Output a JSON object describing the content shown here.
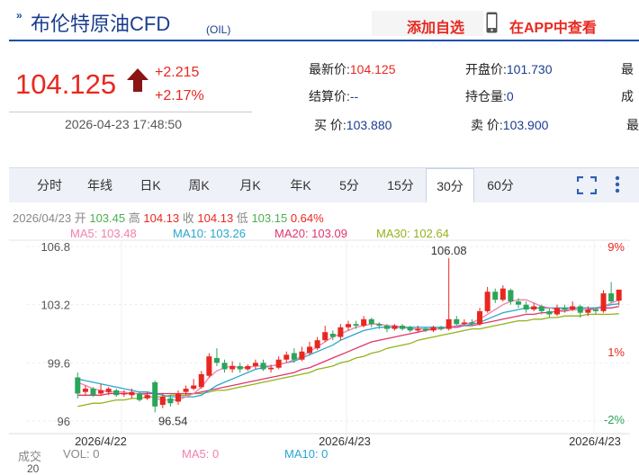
{
  "header": {
    "title": "布伦特原油CFD",
    "title_sub": "(OIL)",
    "watch_label": "添加自选",
    "app_label": "在APP中查看"
  },
  "quote": {
    "price": "104.125",
    "change": "+2.215",
    "change_pct": "+2.17%",
    "datetime": "2026-04-23 17:48:50",
    "latest_label": "最新价:",
    "latest_value": "104.125",
    "open_label": "开盘价:",
    "open_value": "101.730",
    "high_label_partial": "最",
    "settle_label": "结算价:",
    "settle_value": "--",
    "oi_label": "持仓量:",
    "oi_value": "0",
    "vol_label_partial": "成",
    "bid_label": "买  价:",
    "bid_value": "103.880",
    "ask_label": "卖  价:",
    "ask_value": "103.900",
    "extra_label_partial": "最"
  },
  "tabs": [
    {
      "label": "分时"
    },
    {
      "label": "年线"
    },
    {
      "label": "日K"
    },
    {
      "label": "周K"
    },
    {
      "label": "月K"
    },
    {
      "label": "年K"
    },
    {
      "label": "5分"
    },
    {
      "label": "15分"
    },
    {
      "label": "30分",
      "active": true
    },
    {
      "label": "60分"
    }
  ],
  "ohlc": {
    "date": "2026/04/23",
    "open_label": "开",
    "open": "103.45",
    "high_label": "高",
    "high": "104.13",
    "close_label": "收",
    "close": "104.13",
    "low_label": "低",
    "low": "103.15",
    "pct": "0.64%"
  },
  "ma": {
    "ma5": "MA5: 103.48",
    "ma10": "MA10: 103.26",
    "ma20": "MA20: 103.09",
    "ma30": "MA30: 102.64"
  },
  "colors": {
    "up": "#e8281f",
    "down": "#2aa55a",
    "ma5": "#f27fae",
    "ma10": "#29a7cf",
    "ma20": "#e0366b",
    "ma30": "#93b21b",
    "brand": "#1a3d8f"
  },
  "chart_data": {
    "type": "candlestick",
    "y_ticks": [
      "106.8",
      "103.2",
      "99.6",
      "96"
    ],
    "y_pct_ticks": [
      "9%",
      "1%",
      "-2%"
    ],
    "x_ticks": [
      "2026/4/22",
      "2026/4/23",
      "2026/4/23"
    ],
    "annotations": {
      "max": "106.08",
      "min": "96.54"
    },
    "ylim": [
      96,
      106.8
    ],
    "candles": [
      {
        "o": 98.7,
        "c": 97.7,
        "h": 99.0,
        "l": 97.4
      },
      {
        "o": 97.8,
        "c": 98.0,
        "h": 98.2,
        "l": 97.6
      },
      {
        "o": 98.0,
        "c": 97.6,
        "h": 98.1,
        "l": 97.5
      },
      {
        "o": 97.7,
        "c": 97.9,
        "h": 98.3,
        "l": 97.6
      },
      {
        "o": 97.8,
        "c": 98.0,
        "h": 98.1,
        "l": 97.6
      },
      {
        "o": 97.9,
        "c": 97.6,
        "h": 98.0,
        "l": 97.5
      },
      {
        "o": 97.7,
        "c": 97.7,
        "h": 97.9,
        "l": 97.5
      },
      {
        "o": 97.6,
        "c": 97.8,
        "h": 98.0,
        "l": 97.4
      },
      {
        "o": 97.7,
        "c": 97.3,
        "h": 97.8,
        "l": 97.2
      },
      {
        "o": 97.4,
        "c": 97.6,
        "h": 97.8,
        "l": 97.3
      },
      {
        "o": 98.4,
        "c": 96.9,
        "h": 98.5,
        "l": 96.54
      },
      {
        "o": 97.0,
        "c": 97.5,
        "h": 97.7,
        "l": 96.8
      },
      {
        "o": 97.4,
        "c": 97.1,
        "h": 97.6,
        "l": 96.9
      },
      {
        "o": 97.2,
        "c": 97.7,
        "h": 97.9,
        "l": 97.0
      },
      {
        "o": 97.8,
        "c": 98.0,
        "h": 98.2,
        "l": 97.6
      },
      {
        "o": 98.0,
        "c": 98.2,
        "h": 98.6,
        "l": 97.9
      },
      {
        "o": 98.1,
        "c": 98.9,
        "h": 99.1,
        "l": 98.0
      },
      {
        "o": 98.8,
        "c": 100.0,
        "h": 100.2,
        "l": 98.7
      },
      {
        "o": 99.9,
        "c": 99.6,
        "h": 100.5,
        "l": 99.4
      },
      {
        "o": 99.6,
        "c": 99.2,
        "h": 99.8,
        "l": 99.0
      },
      {
        "o": 99.2,
        "c": 99.4,
        "h": 99.7,
        "l": 99.0
      },
      {
        "o": 99.4,
        "c": 99.2,
        "h": 99.6,
        "l": 99.0
      },
      {
        "o": 99.2,
        "c": 99.4,
        "h": 99.5,
        "l": 99.1
      },
      {
        "o": 99.4,
        "c": 99.6,
        "h": 99.8,
        "l": 99.2
      },
      {
        "o": 99.6,
        "c": 99.2,
        "h": 99.8,
        "l": 99.1
      },
      {
        "o": 99.2,
        "c": 99.3,
        "h": 99.5,
        "l": 99.0
      },
      {
        "o": 99.3,
        "c": 99.8,
        "h": 100.0,
        "l": 99.2
      },
      {
        "o": 99.8,
        "c": 100.1,
        "h": 100.3,
        "l": 99.6
      },
      {
        "o": 100.2,
        "c": 99.8,
        "h": 100.5,
        "l": 99.6
      },
      {
        "o": 99.8,
        "c": 100.3,
        "h": 100.6,
        "l": 99.7
      },
      {
        "o": 100.2,
        "c": 100.6,
        "h": 100.9,
        "l": 100.1
      },
      {
        "o": 100.5,
        "c": 101.0,
        "h": 101.2,
        "l": 100.4
      },
      {
        "o": 101.0,
        "c": 101.5,
        "h": 101.9,
        "l": 100.9
      },
      {
        "o": 101.4,
        "c": 101.2,
        "h": 101.6,
        "l": 101.0
      },
      {
        "o": 101.2,
        "c": 101.8,
        "h": 102.0,
        "l": 101.0
      },
      {
        "o": 101.8,
        "c": 102.0,
        "h": 102.2,
        "l": 101.6
      },
      {
        "o": 102.0,
        "c": 101.9,
        "h": 102.2,
        "l": 101.7
      },
      {
        "o": 101.9,
        "c": 102.3,
        "h": 102.5,
        "l": 101.8
      },
      {
        "o": 102.3,
        "c": 102.0,
        "h": 102.4,
        "l": 101.8
      },
      {
        "o": 102.0,
        "c": 101.9,
        "h": 102.1,
        "l": 101.7
      },
      {
        "o": 101.9,
        "c": 101.7,
        "h": 102.0,
        "l": 101.5
      },
      {
        "o": 101.7,
        "c": 101.9,
        "h": 102.0,
        "l": 101.6
      },
      {
        "o": 101.9,
        "c": 101.7,
        "h": 102.0,
        "l": 101.6
      },
      {
        "o": 101.8,
        "c": 101.6,
        "h": 101.9,
        "l": 101.5
      },
      {
        "o": 101.6,
        "c": 101.7,
        "h": 101.9,
        "l": 101.5
      },
      {
        "o": 101.7,
        "c": 101.6,
        "h": 101.8,
        "l": 101.5
      },
      {
        "o": 101.6,
        "c": 101.8,
        "h": 101.9,
        "l": 101.5
      },
      {
        "o": 101.8,
        "c": 101.7,
        "h": 101.9,
        "l": 101.6
      },
      {
        "o": 101.7,
        "c": 102.3,
        "h": 106.08,
        "l": 101.6
      },
      {
        "o": 102.3,
        "c": 102.0,
        "h": 102.5,
        "l": 101.9
      },
      {
        "o": 102.0,
        "c": 102.1,
        "h": 102.3,
        "l": 101.9
      },
      {
        "o": 102.1,
        "c": 102.0,
        "h": 102.3,
        "l": 101.9
      },
      {
        "o": 102.0,
        "c": 102.8,
        "h": 103.0,
        "l": 101.9
      },
      {
        "o": 102.8,
        "c": 104.0,
        "h": 104.3,
        "l": 102.7
      },
      {
        "o": 104.0,
        "c": 103.5,
        "h": 104.2,
        "l": 103.3
      },
      {
        "o": 103.5,
        "c": 104.2,
        "h": 104.4,
        "l": 103.4
      },
      {
        "o": 104.1,
        "c": 103.4,
        "h": 104.2,
        "l": 103.2
      },
      {
        "o": 103.4,
        "c": 103.2,
        "h": 103.6,
        "l": 103.0
      },
      {
        "o": 103.2,
        "c": 102.9,
        "h": 103.4,
        "l": 102.7
      },
      {
        "o": 102.9,
        "c": 103.1,
        "h": 103.3,
        "l": 102.8
      },
      {
        "o": 103.1,
        "c": 102.8,
        "h": 103.2,
        "l": 102.6
      },
      {
        "o": 102.8,
        "c": 102.6,
        "h": 103.0,
        "l": 102.4
      },
      {
        "o": 102.6,
        "c": 103.0,
        "h": 103.2,
        "l": 102.5
      },
      {
        "o": 103.0,
        "c": 102.9,
        "h": 103.2,
        "l": 102.7
      },
      {
        "o": 102.9,
        "c": 103.1,
        "h": 103.4,
        "l": 102.8
      },
      {
        "o": 103.1,
        "c": 102.7,
        "h": 103.2,
        "l": 102.4
      },
      {
        "o": 102.7,
        "c": 102.9,
        "h": 103.1,
        "l": 102.5
      },
      {
        "o": 102.9,
        "c": 102.8,
        "h": 103.0,
        "l": 102.6
      },
      {
        "o": 102.8,
        "c": 103.9,
        "h": 104.1,
        "l": 102.7
      },
      {
        "o": 103.9,
        "c": 103.4,
        "h": 104.6,
        "l": 103.3
      },
      {
        "o": 103.45,
        "c": 104.13,
        "h": 104.13,
        "l": 103.15
      }
    ],
    "ma5": [
      98.4,
      98.2,
      98.0,
      97.9,
      97.8,
      97.8,
      97.8,
      97.7,
      97.7,
      97.6,
      97.4,
      97.3,
      97.3,
      97.3,
      97.5,
      97.7,
      98.1,
      98.7,
      99.1,
      99.3,
      99.4,
      99.3,
      99.3,
      99.4,
      99.4,
      99.4,
      99.5,
      99.6,
      99.8,
      100.0,
      100.3,
      100.6,
      100.9,
      101.2,
      101.4,
      101.6,
      101.8,
      101.9,
      102.0,
      102.0,
      101.9,
      101.9,
      101.8,
      101.7,
      101.7,
      101.7,
      101.7,
      101.7,
      101.8,
      101.9,
      102.0,
      102.1,
      102.3,
      102.6,
      102.9,
      103.2,
      103.4,
      103.5,
      103.5,
      103.3,
      103.1,
      103.0,
      102.9,
      102.9,
      102.9,
      102.9,
      102.9,
      102.9,
      103.1,
      103.3,
      103.48
    ],
    "ma10": [
      98.6,
      98.5,
      98.4,
      98.3,
      98.2,
      98.1,
      98.0,
      97.9,
      97.8,
      97.8,
      97.7,
      97.6,
      97.5,
      97.5,
      97.5,
      97.5,
      97.6,
      97.9,
      98.2,
      98.4,
      98.6,
      98.8,
      99.0,
      99.2,
      99.3,
      99.4,
      99.5,
      99.6,
      99.7,
      99.9,
      100.1,
      100.3,
      100.5,
      100.7,
      101.0,
      101.2,
      101.4,
      101.6,
      101.7,
      101.8,
      101.8,
      101.8,
      101.8,
      101.8,
      101.8,
      101.8,
      101.8,
      101.8,
      101.8,
      101.9,
      101.9,
      102.0,
      102.1,
      102.3,
      102.5,
      102.7,
      102.8,
      102.9,
      103.0,
      103.0,
      103.0,
      103.0,
      103.0,
      103.0,
      103.0,
      103.0,
      103.0,
      103.0,
      103.1,
      103.2,
      103.26
    ],
    "ma20": [
      97.6,
      97.6,
      97.6,
      97.6,
      97.7,
      97.7,
      97.7,
      97.7,
      97.7,
      97.7,
      97.7,
      97.7,
      97.7,
      97.7,
      97.7,
      97.7,
      97.8,
      97.9,
      98.0,
      98.1,
      98.2,
      98.3,
      98.4,
      98.5,
      98.6,
      98.7,
      98.8,
      98.9,
      99.0,
      99.2,
      99.3,
      99.5,
      99.7,
      99.9,
      100.1,
      100.3,
      100.5,
      100.7,
      100.9,
      101.0,
      101.1,
      101.2,
      101.3,
      101.4,
      101.5,
      101.6,
      101.7,
      101.7,
      101.8,
      101.8,
      101.9,
      101.9,
      102.0,
      102.1,
      102.2,
      102.3,
      102.4,
      102.5,
      102.6,
      102.6,
      102.7,
      102.7,
      102.8,
      102.8,
      102.9,
      102.9,
      102.9,
      103.0,
      103.0,
      103.0,
      103.09
    ],
    "ma30": [
      96.9,
      97.0,
      97.1,
      97.1,
      97.2,
      97.3,
      97.3,
      97.4,
      97.4,
      97.5,
      97.5,
      97.5,
      97.6,
      97.6,
      97.6,
      97.7,
      97.7,
      97.8,
      97.9,
      97.9,
      98.0,
      98.1,
      98.2,
      98.3,
      98.4,
      98.5,
      98.6,
      98.7,
      98.8,
      98.9,
      99.0,
      99.2,
      99.3,
      99.4,
      99.6,
      99.7,
      99.9,
      100.0,
      100.2,
      100.3,
      100.5,
      100.6,
      100.7,
      100.8,
      101.0,
      101.1,
      101.2,
      101.3,
      101.4,
      101.5,
      101.6,
      101.7,
      101.7,
      101.8,
      101.9,
      102.0,
      102.1,
      102.2,
      102.2,
      102.3,
      102.3,
      102.4,
      102.4,
      102.5,
      102.5,
      102.5,
      102.6,
      102.6,
      102.6,
      102.6,
      102.64
    ]
  },
  "volume": {
    "label": "成交",
    "vol": "VOL: 0",
    "ma5": "MA5: 0",
    "ma10": "MA10: 0",
    "y_tick": "20"
  }
}
